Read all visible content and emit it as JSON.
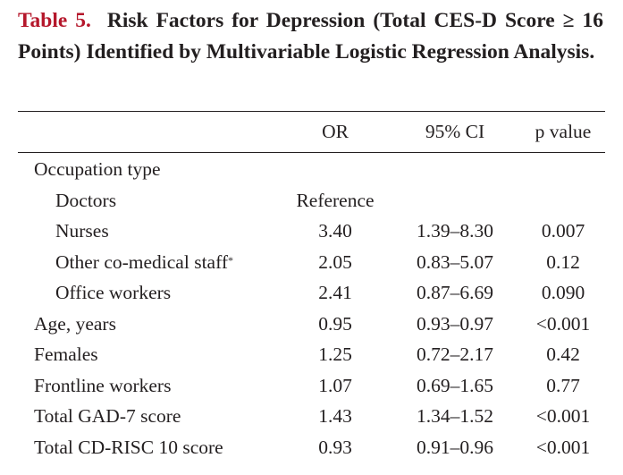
{
  "caption": {
    "label": "Table 5.",
    "text": "Risk Factors for Depression (Total CES-D Score ≥ 16 Points) Identified by Multivariable Logistic Regression Analysis."
  },
  "table": {
    "headers": {
      "or": "OR",
      "ci": "95% CI",
      "p": "p value"
    },
    "group_label": "Occupation type",
    "rows": [
      {
        "label": "Doctors",
        "or": "Reference",
        "ci": "",
        "p": ""
      },
      {
        "label": "Nurses",
        "or": "3.40",
        "ci": "1.39–8.30",
        "p": "0.007"
      },
      {
        "label": "Other co-medical staff",
        "note": "*",
        "or": "2.05",
        "ci": "0.83–5.07",
        "p": "0.12"
      },
      {
        "label": "Office workers",
        "or": "2.41",
        "ci": "0.87–6.69",
        "p": "0.090"
      },
      {
        "label": "Age, years",
        "or": "0.95",
        "ci": "0.93–0.97",
        "p": "<0.001"
      },
      {
        "label": "Females",
        "or": "1.25",
        "ci": "0.72–2.17",
        "p": "0.42"
      },
      {
        "label": "Frontline workers",
        "or": "1.07",
        "ci": "0.69–1.65",
        "p": "0.77"
      },
      {
        "label": "Total GAD-7 score",
        "or": "1.43",
        "ci": "1.34–1.52",
        "p": "<0.001"
      },
      {
        "label": "Total CD-RISC 10 score",
        "or": "0.93",
        "ci": "0.91–0.96",
        "p": "<0.001"
      }
    ]
  },
  "colors": {
    "label_red": "#b5172b",
    "text": "#231f20"
  }
}
